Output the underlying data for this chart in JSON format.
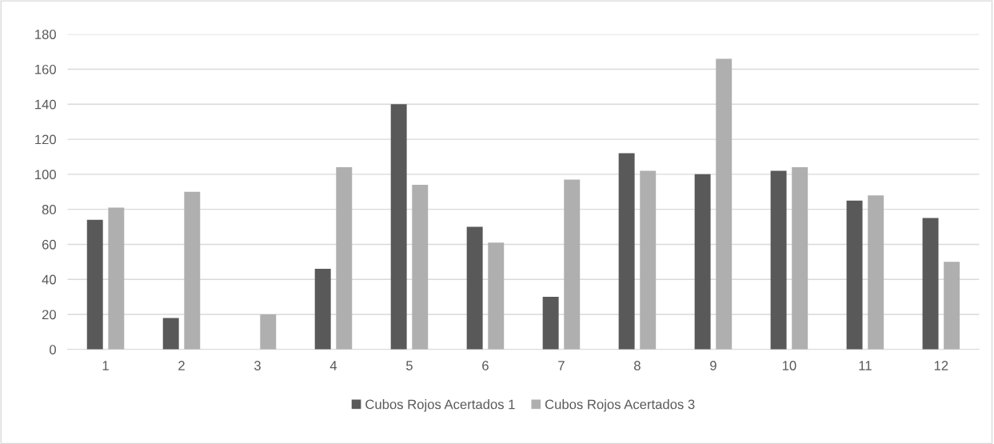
{
  "chart_data": {
    "type": "bar",
    "categories": [
      "1",
      "2",
      "3",
      "4",
      "5",
      "6",
      "7",
      "8",
      "9",
      "10",
      "11",
      "12"
    ],
    "series": [
      {
        "name": "Cubos Rojos Acertados 1",
        "color": "#595959",
        "values": [
          74,
          18,
          0,
          46,
          140,
          70,
          30,
          112,
          100,
          102,
          85,
          75
        ]
      },
      {
        "name": "Cubos Rojos Acertados 3",
        "color": "#afafaf",
        "values": [
          81,
          90,
          20,
          104,
          94,
          61,
          97,
          102,
          166,
          104,
          88,
          50
        ]
      }
    ],
    "ylim": [
      0,
      180
    ],
    "yticks": [
      0,
      20,
      40,
      60,
      80,
      100,
      120,
      140,
      160,
      180
    ],
    "grid": "y",
    "legend": "bottom"
  }
}
